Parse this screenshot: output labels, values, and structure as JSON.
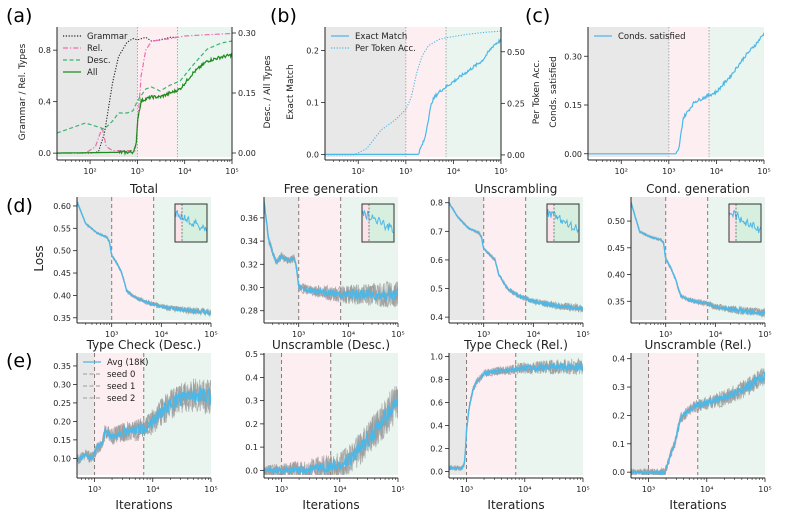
{
  "figure": {
    "panel_labels": [
      "(a)",
      "(b)",
      "(c)",
      "(d)",
      "(e)"
    ],
    "phase_boundaries": [
      1000,
      7000
    ],
    "phase_colors": [
      "#e8e8e8",
      "#fdeef2",
      "#e9f5ee"
    ],
    "colors": {
      "blue": "#4cb8e8",
      "gray": "#9a9a9a",
      "pink": "#f06bb0",
      "lightgreen": "#3cb371",
      "darkgreen": "#1e8c1e",
      "black": "#222222"
    }
  },
  "chart_data": [
    {
      "id": "a",
      "type": "line",
      "title": "",
      "xscale": "log",
      "xlim": [
        20,
        100000
      ],
      "xticks": [
        100,
        1000,
        10000,
        100000
      ],
      "xticklabels": [
        "10²",
        "10³",
        "10⁴",
        "10⁵"
      ],
      "ylabel": "Grammar / Rel. Types",
      "ylim": [
        -0.03,
        0.98
      ],
      "yticks": [
        0.0,
        0.4,
        0.8
      ],
      "yticklabels": [
        "0.0",
        "0.4",
        "0.8"
      ],
      "ylabel_right": "Desc. / All Types",
      "ylim_right": [
        -0.01,
        0.315
      ],
      "yticks_right": [
        0.0,
        0.15,
        0.3
      ],
      "yticklabels_right": [
        "0.00",
        "0.15",
        "0.30"
      ],
      "legend": "top-left",
      "series": [
        {
          "name": "Grammar",
          "axis": "left",
          "style": "dotted",
          "color": "#222222",
          "x": [
            20,
            100,
            150,
            200,
            300,
            400,
            600,
            800,
            1000,
            1500,
            2000,
            3000,
            5000,
            7000
          ],
          "y": [
            0,
            0,
            0.01,
            0.15,
            0.55,
            0.75,
            0.86,
            0.89,
            0.88,
            0.9,
            0.87,
            0.88,
            0.9,
            0.9
          ]
        },
        {
          "name": "Rel.",
          "axis": "left",
          "style": "dashdot",
          "color": "#f06bb0",
          "x": [
            20,
            80,
            130,
            180,
            220,
            300,
            500,
            900,
            1000,
            1200,
            1500,
            2000,
            5000,
            10000,
            30000,
            100000
          ],
          "y": [
            0,
            0,
            0.05,
            0.2,
            0.05,
            0.02,
            0.02,
            0.02,
            0.2,
            0.6,
            0.8,
            0.87,
            0.89,
            0.91,
            0.92,
            0.93
          ]
        },
        {
          "name": "Desc.",
          "axis": "right",
          "style": "dashed",
          "color": "#3cb371",
          "x": [
            20,
            80,
            150,
            200,
            300,
            400,
            600,
            800,
            1000,
            1500,
            2000,
            3000,
            5000,
            8000,
            15000,
            30000,
            60000,
            100000
          ],
          "y": [
            0.05,
            0.075,
            0.065,
            0.06,
            0.08,
            0.1,
            0.1,
            0.105,
            0.13,
            0.16,
            0.165,
            0.155,
            0.17,
            0.18,
            0.22,
            0.26,
            0.275,
            0.28
          ]
        },
        {
          "name": "All",
          "axis": "right",
          "style": "solid",
          "color": "#1e8c1e",
          "x": [
            20,
            800,
            950,
            1000,
            1200,
            1500,
            2000,
            3000,
            5000,
            8000,
            15000,
            30000,
            60000,
            100000
          ],
          "y": [
            0,
            0.002,
            0.02,
            0.08,
            0.13,
            0.135,
            0.14,
            0.14,
            0.15,
            0.16,
            0.2,
            0.23,
            0.24,
            0.245
          ]
        }
      ]
    },
    {
      "id": "b",
      "type": "line",
      "title": "",
      "xscale": "log",
      "xlim": [
        20,
        100000
      ],
      "xticks": [
        100,
        1000,
        10000,
        100000
      ],
      "xticklabels": [
        "10²",
        "10³",
        "10⁴",
        "10⁵"
      ],
      "ylabel": "Exact Match",
      "ylim": [
        -0.005,
        0.245
      ],
      "yticks": [
        0.0,
        0.1,
        0.2
      ],
      "yticklabels": [
        "0.0",
        "0.1",
        "0.2"
      ],
      "ylabel_right": "Per Token Acc.",
      "ylim_right": [
        -0.01,
        0.62
      ],
      "yticks_right": [
        0.0,
        0.25,
        0.5
      ],
      "yticklabels_right": [
        "0.00",
        "0.25",
        "0.50"
      ],
      "legend": "top-left",
      "series": [
        {
          "name": "Exact Match",
          "axis": "left",
          "style": "solid",
          "color": "#4cb8e8",
          "x": [
            20,
            1800,
            2500,
            3000,
            3500,
            4000,
            5000,
            7000,
            10000,
            20000,
            40000,
            70000,
            100000
          ],
          "y": [
            0,
            0,
            0.03,
            0.07,
            0.1,
            0.11,
            0.12,
            0.13,
            0.14,
            0.16,
            0.18,
            0.21,
            0.22
          ]
        },
        {
          "name": "Per Token Acc.",
          "axis": "right",
          "style": "dotted",
          "color": "#4cb8e8",
          "x": [
            20,
            80,
            150,
            300,
            600,
            1000,
            1300,
            1700,
            2200,
            3000,
            5000,
            8000,
            20000,
            50000,
            100000
          ],
          "y": [
            0,
            0,
            0.03,
            0.12,
            0.17,
            0.22,
            0.28,
            0.4,
            0.48,
            0.53,
            0.56,
            0.57,
            0.585,
            0.595,
            0.6
          ]
        }
      ]
    },
    {
      "id": "c",
      "type": "line",
      "title": "",
      "xscale": "log",
      "xlim": [
        20,
        100000
      ],
      "xticks": [
        100,
        1000,
        10000,
        100000
      ],
      "xticklabels": [
        "10²",
        "10³",
        "10⁴",
        "10⁵"
      ],
      "ylabel": "Conds. satisfied",
      "ylim": [
        -0.01,
        0.39
      ],
      "yticks": [
        0.0,
        0.15,
        0.3
      ],
      "yticklabels": [
        "0.00",
        "0.15",
        "0.30"
      ],
      "legend": "top-left",
      "series": [
        {
          "name": "Conds. satisfied",
          "axis": "left",
          "style": "solid",
          "color": "#4cb8e8",
          "x": [
            20,
            1400,
            1600,
            1800,
            2000,
            2500,
            3500,
            5000,
            7000,
            10000,
            20000,
            40000,
            70000,
            100000
          ],
          "y": [
            0,
            0,
            0.01,
            0.06,
            0.11,
            0.13,
            0.16,
            0.17,
            0.18,
            0.19,
            0.24,
            0.3,
            0.34,
            0.37
          ]
        }
      ]
    },
    {
      "id": "d1",
      "type": "line",
      "title": "Total",
      "xscale": "log",
      "xlim": [
        200,
        100000
      ],
      "xticks": [
        1000,
        10000,
        100000
      ],
      "xticklabels": [
        "10³",
        "10⁴",
        "10⁵"
      ],
      "ylabel": "Loss",
      "ylim": [
        0.345,
        0.62
      ],
      "yticks": [
        0.35,
        0.4,
        0.45,
        0.5,
        0.55,
        0.6
      ],
      "yticklabels": [
        "0.35",
        "0.40",
        "0.45",
        "0.50",
        "0.55",
        "0.60"
      ],
      "inset": true,
      "phase_lines": "dashed",
      "series": [
        {
          "name": "Avg",
          "style": "solid",
          "color": "#4cb8e8",
          "band": 0.006,
          "x": [
            200,
            300,
            500,
            800,
            900,
            1000,
            1300,
            1600,
            2000,
            3000,
            5000,
            7000,
            10000,
            30000,
            100000
          ],
          "y": [
            0.61,
            0.56,
            0.54,
            0.53,
            0.52,
            0.49,
            0.47,
            0.45,
            0.41,
            0.395,
            0.385,
            0.38,
            0.375,
            0.367,
            0.362
          ]
        }
      ]
    },
    {
      "id": "d2",
      "type": "line",
      "title": "Free generation",
      "xscale": "log",
      "xlim": [
        200,
        100000
      ],
      "xticks": [
        1000,
        10000,
        100000
      ],
      "xticklabels": [
        "10³",
        "10⁴",
        "10⁵"
      ],
      "ylabel": "",
      "ylim": [
        0.272,
        0.378
      ],
      "yticks": [
        0.28,
        0.3,
        0.32,
        0.34,
        0.36
      ],
      "yticklabels": [
        "0.28",
        "0.30",
        "0.32",
        "0.34",
        "0.36"
      ],
      "inset": true,
      "phase_lines": "dashed",
      "series": [
        {
          "name": "Avg",
          "style": "solid",
          "color": "#4cb8e8",
          "band": 0.008,
          "x": [
            200,
            250,
            350,
            450,
            600,
            800,
            900,
            1000,
            1500,
            3000,
            7000,
            20000,
            100000
          ],
          "y": [
            0.375,
            0.34,
            0.322,
            0.327,
            0.323,
            0.325,
            0.318,
            0.3,
            0.298,
            0.296,
            0.294,
            0.294,
            0.294
          ]
        }
      ]
    },
    {
      "id": "d3",
      "type": "line",
      "title": "Unscrambling",
      "xscale": "log",
      "xlim": [
        200,
        100000
      ],
      "xticks": [
        1000,
        10000,
        100000
      ],
      "xticklabels": [
        "10³",
        "10⁴",
        "10⁵"
      ],
      "ylabel": "",
      "ylim": [
        0.39,
        0.82
      ],
      "yticks": [
        0.4,
        0.5,
        0.6,
        0.7,
        0.8
      ],
      "yticklabels": [
        "0.4",
        "0.5",
        "0.6",
        "0.7",
        "0.8"
      ],
      "inset": true,
      "phase_lines": "dashed",
      "series": [
        {
          "name": "Avg",
          "style": "solid",
          "color": "#4cb8e8",
          "band": 0.01,
          "x": [
            200,
            300,
            500,
            800,
            900,
            1000,
            1300,
            1700,
            2000,
            3000,
            5000,
            7000,
            10000,
            30000,
            100000
          ],
          "y": [
            0.8,
            0.75,
            0.71,
            0.695,
            0.68,
            0.64,
            0.62,
            0.6,
            0.55,
            0.5,
            0.475,
            0.465,
            0.455,
            0.44,
            0.43
          ]
        }
      ]
    },
    {
      "id": "d4",
      "type": "line",
      "title": "Cond. generation",
      "xscale": "log",
      "xlim": [
        200,
        100000
      ],
      "xticks": [
        1000,
        10000,
        100000
      ],
      "xticklabels": [
        "10³",
        "10⁴",
        "10⁵"
      ],
      "ylabel": "",
      "ylim": [
        0.315,
        0.545
      ],
      "yticks": [
        0.35,
        0.4,
        0.45,
        0.5
      ],
      "yticklabels": [
        "0.35",
        "0.40",
        "0.45",
        "0.50"
      ],
      "inset": true,
      "phase_lines": "dashed",
      "series": [
        {
          "name": "Avg",
          "style": "solid",
          "color": "#4cb8e8",
          "band": 0.006,
          "x": [
            200,
            300,
            500,
            800,
            900,
            1000,
            1300,
            1600,
            2000,
            3000,
            5000,
            7000,
            10000,
            30000,
            100000
          ],
          "y": [
            0.535,
            0.48,
            0.47,
            0.465,
            0.46,
            0.43,
            0.41,
            0.39,
            0.36,
            0.352,
            0.348,
            0.345,
            0.34,
            0.333,
            0.328
          ]
        }
      ]
    },
    {
      "id": "e1",
      "type": "line",
      "title": "Type Check (Desc.)",
      "xscale": "log",
      "xlim": [
        500,
        100000
      ],
      "xticks": [
        1000,
        10000,
        100000
      ],
      "xticklabels": [
        "10³",
        "10⁴",
        "10⁵"
      ],
      "xlabel": "Iterations",
      "ylabel": "",
      "ylim": [
        0.055,
        0.385
      ],
      "yticks": [
        0.1,
        0.15,
        0.2,
        0.25,
        0.3,
        0.35
      ],
      "yticklabels": [
        "0.10",
        "0.15",
        "0.20",
        "0.25",
        "0.30",
        "0.35"
      ],
      "phase_lines": "dashed",
      "legend": "top-left",
      "legend_entries": [
        "Avg (18K)",
        "seed 0",
        "seed 1",
        "seed 2"
      ],
      "series": [
        {
          "name": "Avg (18K)",
          "style": "solid",
          "color": "#4cb8e8",
          "band": 0.035,
          "x": [
            500,
            700,
            900,
            1100,
            1400,
            1500,
            2000,
            3000,
            5000,
            7000,
            10000,
            15000,
            25000,
            40000,
            60000,
            100000
          ],
          "y": [
            0.095,
            0.11,
            0.1,
            0.13,
            0.14,
            0.17,
            0.16,
            0.17,
            0.175,
            0.18,
            0.2,
            0.23,
            0.255,
            0.27,
            0.27,
            0.265
          ]
        }
      ]
    },
    {
      "id": "e2",
      "type": "line",
      "title": "Unscramble (Desc.)",
      "xscale": "log",
      "xlim": [
        500,
        100000
      ],
      "xticks": [
        1000,
        10000,
        100000
      ],
      "xticklabels": [
        "10³",
        "10⁴",
        "10⁵"
      ],
      "xlabel": "Iterations",
      "ylabel": "",
      "ylim": [
        -0.02,
        0.505
      ],
      "yticks": [
        0.0,
        0.1,
        0.2,
        0.3,
        0.4,
        0.5
      ],
      "yticklabels": [
        "0.0",
        "0.1",
        "0.2",
        "0.3",
        "0.4",
        "0.5"
      ],
      "phase_lines": "dashed",
      "series": [
        {
          "name": "Avg",
          "style": "solid",
          "color": "#4cb8e8",
          "band": 0.06,
          "x": [
            500,
            2500,
            4000,
            7000,
            10000,
            15000,
            20000,
            30000,
            50000,
            70000,
            100000
          ],
          "y": [
            0,
            0,
            0.01,
            0.015,
            0.02,
            0.05,
            0.08,
            0.13,
            0.2,
            0.25,
            0.3
          ]
        }
      ]
    },
    {
      "id": "e3",
      "type": "line",
      "title": "Type Check (Rel.)",
      "xscale": "log",
      "xlim": [
        500,
        100000
      ],
      "xticks": [
        1000,
        10000,
        100000
      ],
      "xticklabels": [
        "10³",
        "10⁴",
        "10⁵"
      ],
      "xlabel": "Iterations",
      "ylabel": "",
      "ylim": [
        -0.03,
        1.03
      ],
      "yticks": [
        0.0,
        0.2,
        0.4,
        0.6,
        0.8,
        1.0
      ],
      "yticklabels": [
        "0.0",
        "0.2",
        "0.4",
        "0.6",
        "0.8",
        "1.0"
      ],
      "phase_lines": "dashed",
      "series": [
        {
          "name": "Avg",
          "style": "solid",
          "color": "#4cb8e8",
          "band": 0.05,
          "x": [
            500,
            800,
            900,
            950,
            1000,
            1100,
            1300,
            1500,
            2000,
            3000,
            5000,
            7000,
            10000,
            30000,
            100000
          ],
          "y": [
            0.03,
            0.03,
            0.05,
            0.15,
            0.35,
            0.55,
            0.72,
            0.78,
            0.85,
            0.87,
            0.88,
            0.89,
            0.9,
            0.91,
            0.91
          ]
        }
      ]
    },
    {
      "id": "e4",
      "type": "line",
      "title": "Unscramble (Rel.)",
      "xscale": "log",
      "xlim": [
        500,
        100000
      ],
      "xticks": [
        1000,
        10000,
        100000
      ],
      "xticklabels": [
        "10³",
        "10⁴",
        "10⁵"
      ],
      "xlabel": "Iterations",
      "ylabel": "",
      "ylim": [
        -0.01,
        0.42
      ],
      "yticks": [
        0.0,
        0.1,
        0.2,
        0.3,
        0.4
      ],
      "yticklabels": [
        "0.0",
        "0.1",
        "0.2",
        "0.3",
        "0.4"
      ],
      "phase_lines": "dashed",
      "series": [
        {
          "name": "Avg",
          "style": "solid",
          "color": "#4cb8e8",
          "band": 0.025,
          "x": [
            500,
            1900,
            2300,
            2800,
            3200,
            3600,
            4500,
            6000,
            8000,
            12000,
            20000,
            40000,
            70000,
            100000
          ],
          "y": [
            0,
            0,
            0.05,
            0.1,
            0.15,
            0.19,
            0.21,
            0.23,
            0.24,
            0.25,
            0.26,
            0.29,
            0.32,
            0.34
          ]
        }
      ]
    }
  ]
}
